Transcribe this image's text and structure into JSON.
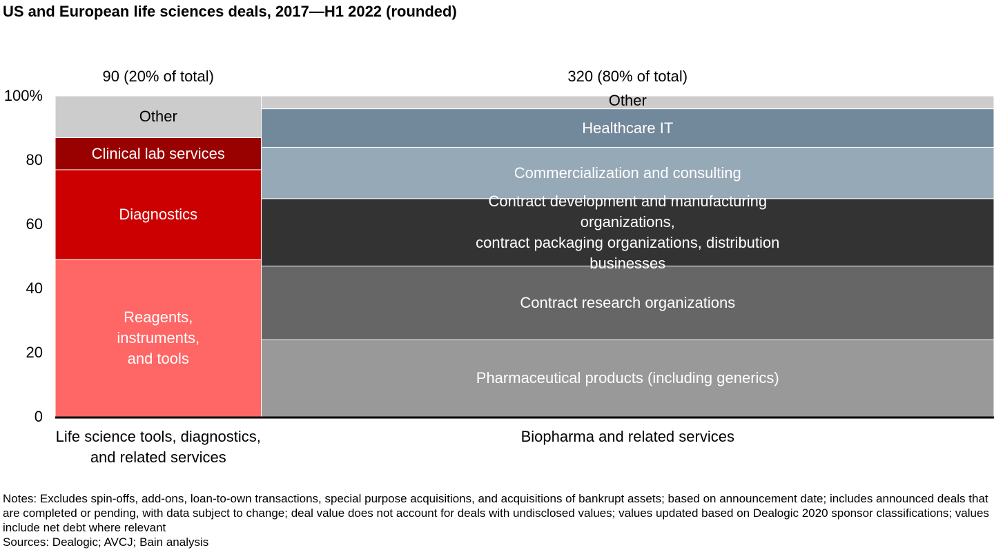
{
  "chart_data": {
    "type": "marimekko",
    "title": "US and European life sciences deals, 2017—H1 2022 (rounded)",
    "ylim": [
      0,
      100
    ],
    "y_ticks": [
      "0",
      "20",
      "40",
      "60",
      "80",
      "100%"
    ],
    "columns": [
      {
        "name": "Life science tools, diagnostics,\nand related services",
        "total": 90,
        "top_label": "90 (20% of total)",
        "segments": [
          {
            "name": "Reagents,\ninstruments,\nand tools",
            "value": 49,
            "color": "#ff6666",
            "text_color": "#ffffff"
          },
          {
            "name": "Diagnostics",
            "value": 28,
            "color": "#cc0000",
            "text_color": "#ffffff"
          },
          {
            "name": "Clinical lab services",
            "value": 10,
            "color": "#990000",
            "text_color": "#ffffff"
          },
          {
            "name": "Other",
            "value": 13,
            "color": "#cccccc",
            "text_color": "#000000"
          }
        ]
      },
      {
        "name": "Biopharma and related services",
        "total": 320,
        "top_label": "320 (80% of total)",
        "segments": [
          {
            "name": "Pharmaceutical products (including generics)",
            "value": 24,
            "color": "#999999",
            "text_color": "#ffffff"
          },
          {
            "name": "Contract research organizations",
            "value": 23,
            "color": "#666666",
            "text_color": "#ffffff"
          },
          {
            "name": "Contract development and manufacturing organizations,\ncontract packaging organizations, distribution businesses",
            "value": 21,
            "color": "#333333",
            "text_color": "#ffffff"
          },
          {
            "name": "Commercialization and consulting",
            "value": 16,
            "color": "#96a9b7",
            "text_color": "#ffffff"
          },
          {
            "name": "Healthcare IT",
            "value": 12,
            "color": "#72889b",
            "text_color": "#ffffff"
          },
          {
            "name": "Other",
            "value": 4,
            "color": "#cccccc",
            "text_color": "#000000"
          }
        ]
      }
    ]
  },
  "notes": "Notes: Excludes spin-offs, add-ons, loan-to-own transactions, special purpose acquisitions, and acquisitions of bankrupt assets; based on announcement date; includes announced deals that are completed or pending, with data subject to change; deal value does not account for deals with undisclosed values; values updated based on Dealogic 2020 sponsor classifications; values include net debt where relevant",
  "sources": "Sources: Dealogic; AVCJ; Bain analysis"
}
